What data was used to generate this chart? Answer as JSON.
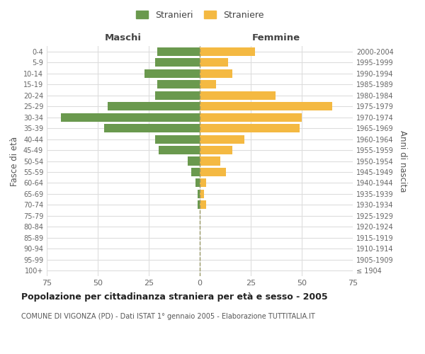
{
  "age_groups": [
    "100+",
    "95-99",
    "90-94",
    "85-89",
    "80-84",
    "75-79",
    "70-74",
    "65-69",
    "60-64",
    "55-59",
    "50-54",
    "45-49",
    "40-44",
    "35-39",
    "30-34",
    "25-29",
    "20-24",
    "15-19",
    "10-14",
    "5-9",
    "0-4"
  ],
  "birth_years": [
    "≤ 1904",
    "1905-1909",
    "1910-1914",
    "1915-1919",
    "1920-1924",
    "1925-1929",
    "1930-1934",
    "1935-1939",
    "1940-1944",
    "1945-1949",
    "1950-1954",
    "1955-1959",
    "1960-1964",
    "1965-1969",
    "1970-1974",
    "1975-1979",
    "1980-1984",
    "1985-1989",
    "1990-1994",
    "1995-1999",
    "2000-2004"
  ],
  "maschi": [
    0,
    0,
    0,
    0,
    0,
    0,
    1,
    1,
    2,
    4,
    6,
    20,
    22,
    47,
    68,
    45,
    22,
    21,
    27,
    22,
    21
  ],
  "femmine": [
    0,
    0,
    0,
    0,
    0,
    0,
    3,
    2,
    3,
    13,
    10,
    16,
    22,
    49,
    50,
    65,
    37,
    8,
    16,
    14,
    27
  ],
  "color_maschi": "#6a994e",
  "color_femmine": "#f4b942",
  "title": "Popolazione per cittadinanza straniera per età e sesso - 2005",
  "subtitle": "COMUNE DI VIGONZA (PD) - Dati ISTAT 1° gennaio 2005 - Elaborazione TUTTITALIA.IT",
  "xlabel_left": "Maschi",
  "xlabel_right": "Femmine",
  "ylabel_left": "Fasce di età",
  "ylabel_right": "Anni di nascita",
  "legend_stranieri": "Stranieri",
  "legend_straniere": "Straniere",
  "xlim": 75,
  "background_color": "#ffffff",
  "grid_color": "#dddddd"
}
